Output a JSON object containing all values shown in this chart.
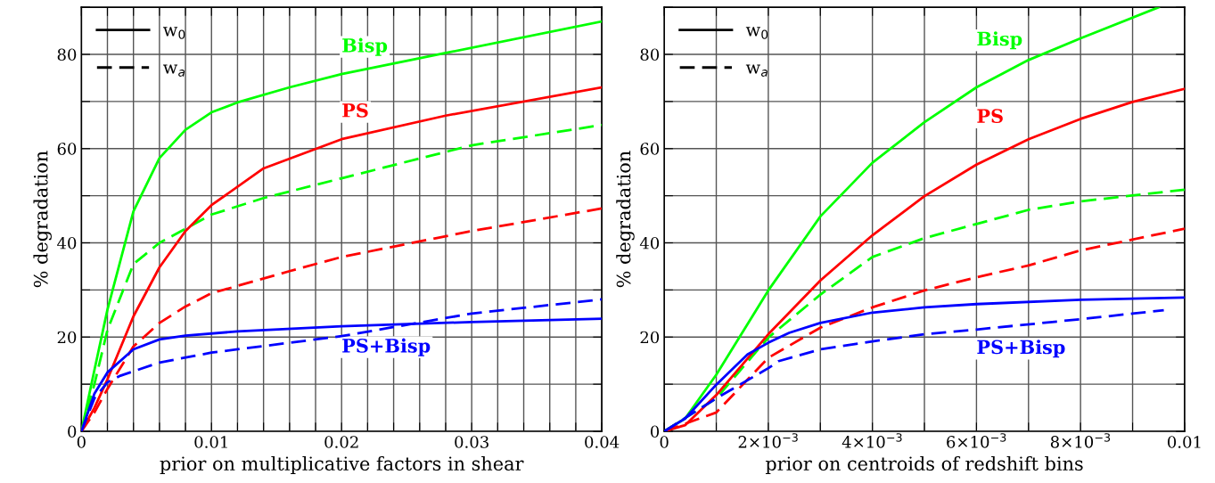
{
  "chart_data": [
    {
      "type": "line",
      "xlabel": "prior on multiplicative factors in shear",
      "ylabel": "% degradation",
      "xlim": [
        0,
        0.04
      ],
      "ylim": [
        0,
        90
      ],
      "xticks": [
        0,
        {
          "value": 0.002,
          "label": null
        },
        {
          "value": 0.004,
          "label": null
        },
        {
          "value": 0.006,
          "label": null
        },
        {
          "value": 0.008,
          "label": null
        },
        0.01,
        {
          "value": 0.012,
          "label": null
        },
        {
          "value": 0.014,
          "label": null
        },
        {
          "value": 0.016,
          "label": null
        },
        {
          "value": 0.018,
          "label": null
        },
        0.02,
        {
          "value": 0.022,
          "label": null
        },
        {
          "value": 0.024,
          "label": null
        },
        {
          "value": 0.026,
          "label": null
        },
        {
          "value": 0.028,
          "label": null
        },
        0.03,
        {
          "value": 0.032,
          "label": null
        },
        {
          "value": 0.034,
          "label": null
        },
        {
          "value": 0.036,
          "label": null
        },
        {
          "value": 0.038,
          "label": null
        },
        0.04
      ],
      "yticks": [
        0,
        {
          "value": 10,
          "label": null
        },
        20,
        {
          "value": 30,
          "label": null
        },
        40,
        {
          "value": 50,
          "label": null
        },
        60,
        {
          "value": 70,
          "label": null
        },
        80,
        {
          "value": 90,
          "label": null
        }
      ],
      "grid": true,
      "annotations": [
        "w$_{0}$",
        "w$_{a}$"
      ],
      "series": [
        {
          "name": "Bisp",
          "color": "#00ff00",
          "line_style": "solid",
          "x": [
            0,
            0.001,
            0.002,
            0.004,
            0.006,
            0.008,
            0.01,
            0.012,
            0.016,
            0.02,
            0.028,
            0.04
          ],
          "values": [
            0,
            13,
            25.8,
            46.7,
            58,
            64,
            67.7,
            69.8,
            73,
            75.8,
            80.3,
            87
          ]
        },
        {
          "color": "#00ff00",
          "line_style": "dashed",
          "x": [
            0,
            0.001,
            0.002,
            0.004,
            0.006,
            0.008,
            0.01,
            0.014,
            0.02,
            0.03,
            0.04
          ],
          "values": [
            0,
            10,
            21.5,
            35.5,
            40,
            43,
            46,
            49.5,
            53.7,
            60.7,
            65
          ]
        },
        {
          "name": "PS",
          "color": "#ff0000",
          "line_style": "solid",
          "x": [
            0,
            0.001,
            0.002,
            0.004,
            0.006,
            0.008,
            0.01,
            0.014,
            0.02,
            0.028,
            0.04
          ],
          "values": [
            0,
            5,
            11,
            24.4,
            34.8,
            42.5,
            48,
            55.8,
            62,
            67,
            73
          ]
        },
        {
          "color": "#ff0000",
          "line_style": "dashed",
          "x": [
            0,
            0.001,
            0.002,
            0.004,
            0.006,
            0.008,
            0.01,
            0.016,
            0.02,
            0.03,
            0.04
          ],
          "values": [
            0,
            4,
            9,
            18,
            23,
            26.5,
            29.3,
            34,
            37,
            42.5,
            47.3
          ]
        },
        {
          "name": "PS+Bisp",
          "color": "#0000ff",
          "line_style": "solid",
          "x": [
            0,
            0.001,
            0.002,
            0.004,
            0.006,
            0.008,
            0.012,
            0.02,
            0.03,
            0.04
          ],
          "values": [
            0,
            8,
            12.5,
            17.4,
            19.5,
            20.3,
            21.2,
            22.3,
            23.2,
            23.9
          ]
        },
        {
          "color": "#0000ff",
          "line_style": "dashed",
          "x": [
            0,
            0.001,
            0.002,
            0.003,
            0.006,
            0.01,
            0.016,
            0.02,
            0.03,
            0.04
          ],
          "values": [
            0,
            7,
            10.4,
            11.8,
            14.6,
            16.7,
            18.8,
            20.2,
            25,
            28
          ]
        }
      ]
    },
    {
      "type": "line",
      "xlabel": "prior on centroids of redshift bins",
      "ylabel": "% degradation",
      "xlim": [
        0,
        0.01
      ],
      "ylim": [
        0,
        90
      ],
      "xticks": [
        0,
        {
          "value": 0.001,
          "label": null
        },
        {
          "value": 0.002,
          "label": "2×10$^{−3}$"
        },
        {
          "value": 0.003,
          "label": null
        },
        {
          "value": 0.004,
          "label": "4×10$^{−3}$"
        },
        {
          "value": 0.005,
          "label": null
        },
        {
          "value": 0.006,
          "label": "6×10$^{−3}$"
        },
        {
          "value": 0.007,
          "label": null
        },
        {
          "value": 0.008,
          "label": "8×10$^{−3}$"
        },
        {
          "value": 0.009,
          "label": null
        },
        0.01
      ],
      "yticks": [
        0,
        {
          "value": 10,
          "label": null
        },
        20,
        {
          "value": 30,
          "label": null
        },
        40,
        {
          "value": 50,
          "label": null
        },
        60,
        {
          "value": 70,
          "label": null
        },
        80,
        {
          "value": 90,
          "label": null
        }
      ],
      "grid": true,
      "annotations": [
        "w$_{0}$",
        "w$_{a}$"
      ],
      "series": [
        {
          "name": "Bisp",
          "color": "#00ff00",
          "line_style": "solid",
          "x": [
            0,
            0.0004,
            0.001,
            0.002,
            0.003,
            0.004,
            0.005,
            0.006,
            0.007,
            0.008,
            0.0095
          ],
          "values": [
            0,
            2.7,
            12,
            29.9,
            45.6,
            57,
            65.6,
            73,
            78.8,
            83.4,
            90
          ]
        },
        {
          "color": "#00ff00",
          "line_style": "dashed",
          "x": [
            0,
            0.001,
            0.002,
            0.003,
            0.004,
            0.005,
            0.006,
            0.007,
            0.008,
            0.01
          ],
          "values": [
            0,
            7,
            19.9,
            29,
            37,
            41,
            44,
            47,
            48.8,
            51.3
          ]
        },
        {
          "name": "PS",
          "color": "#ff0000",
          "line_style": "solid",
          "x": [
            0,
            0.0004,
            0.001,
            0.002,
            0.003,
            0.004,
            0.005,
            0.006,
            0.007,
            0.008,
            0.009,
            0.01
          ],
          "values": [
            0,
            1.3,
            7.7,
            20.6,
            32,
            41.6,
            49.9,
            56.6,
            62,
            66.3,
            69.9,
            72.7
          ]
        },
        {
          "color": "#ff0000",
          "line_style": "dashed",
          "x": [
            0,
            0.001,
            0.002,
            0.003,
            0.004,
            0.005,
            0.006,
            0.007,
            0.008,
            0.01
          ],
          "values": [
            0,
            4,
            15.6,
            22,
            26.3,
            29.9,
            32.7,
            35.2,
            38.4,
            43
          ]
        },
        {
          "name": "PS+Bisp",
          "color": "#0000ff",
          "line_style": "solid",
          "x": [
            0,
            0.0004,
            0.001,
            0.0016,
            0.002,
            0.0024,
            0.003,
            0.004,
            0.005,
            0.006,
            0.008,
            0.01
          ],
          "values": [
            0,
            2.7,
            9.9,
            16.3,
            18.8,
            20.9,
            23,
            25.2,
            26.3,
            27,
            27.9,
            28.4
          ]
        },
        {
          "color": "#0000ff",
          "line_style": "dashed",
          "x": [
            0,
            0.001,
            0.002,
            0.0022,
            0.003,
            0.004,
            0.005,
            0.006,
            0.008,
            0.0096
          ],
          "values": [
            0,
            7,
            13.4,
            14.9,
            17.4,
            19.1,
            20.6,
            21.6,
            23.8,
            25.7
          ]
        }
      ]
    }
  ]
}
